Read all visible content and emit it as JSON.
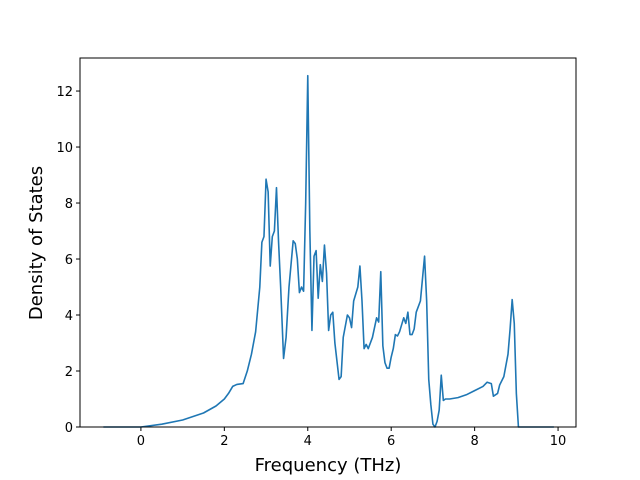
{
  "chart_data": {
    "type": "line",
    "x_label": "Frequency (THz)",
    "y_label": "Density of States",
    "x": [
      -0.9,
      0,
      0.5,
      1,
      1.5,
      1.8,
      2.0,
      2.1,
      2.2,
      2.3,
      2.45,
      2.55,
      2.65,
      2.75,
      2.85,
      2.9,
      2.95,
      3.0,
      3.05,
      3.1,
      3.15,
      3.2,
      3.25,
      3.3,
      3.35,
      3.42,
      3.48,
      3.55,
      3.65,
      3.7,
      3.75,
      3.8,
      3.85,
      3.9,
      3.95,
      4.0,
      4.05,
      4.1,
      4.15,
      4.2,
      4.25,
      4.3,
      4.35,
      4.4,
      4.45,
      4.5,
      4.55,
      4.6,
      4.65,
      4.75,
      4.8,
      4.85,
      4.95,
      5.0,
      5.05,
      5.1,
      5.2,
      5.25,
      5.3,
      5.35,
      5.4,
      5.45,
      5.55,
      5.65,
      5.7,
      5.75,
      5.8,
      5.85,
      5.9,
      5.95,
      6.0,
      6.05,
      6.1,
      6.15,
      6.2,
      6.3,
      6.35,
      6.4,
      6.45,
      6.5,
      6.55,
      6.6,
      6.7,
      6.8,
      6.85,
      6.9,
      6.95,
      7.0,
      7.05,
      7.1,
      7.15,
      7.2,
      7.25,
      7.3,
      7.4,
      7.6,
      7.8,
      8.0,
      8.2,
      8.3,
      8.4,
      8.45,
      8.55,
      8.6,
      8.7,
      8.8,
      8.85,
      8.9,
      8.95,
      9.0,
      9.05,
      9.9
    ],
    "series": [
      {
        "color": "#1f77b4",
        "values": [
          0,
          0,
          0.1,
          0.25,
          0.5,
          0.75,
          1.0,
          1.2,
          1.45,
          1.52,
          1.55,
          2.0,
          2.6,
          3.4,
          5.0,
          6.6,
          6.8,
          8.85,
          8.4,
          5.75,
          6.8,
          7.0,
          8.55,
          6.6,
          5.0,
          2.45,
          3.2,
          5.0,
          6.65,
          6.55,
          6.0,
          4.8,
          5.0,
          4.85,
          8.0,
          12.55,
          7.0,
          3.45,
          6.1,
          6.3,
          4.6,
          5.8,
          5.2,
          6.5,
          5.5,
          3.45,
          4.0,
          4.1,
          3.0,
          1.7,
          1.8,
          3.2,
          4.0,
          3.9,
          3.55,
          4.5,
          5.0,
          5.75,
          4.5,
          2.8,
          2.95,
          2.8,
          3.2,
          3.9,
          3.75,
          5.55,
          2.9,
          2.3,
          2.1,
          2.1,
          2.5,
          2.8,
          3.3,
          3.25,
          3.4,
          3.9,
          3.7,
          4.1,
          3.3,
          3.3,
          3.5,
          4.1,
          4.5,
          6.1,
          4.5,
          1.7,
          0.8,
          0.1,
          0,
          0.2,
          0.6,
          1.85,
          0.95,
          1.0,
          1.0,
          1.05,
          1.15,
          1.3,
          1.45,
          1.6,
          1.55,
          1.1,
          1.2,
          1.5,
          1.8,
          2.6,
          3.5,
          4.55,
          3.7,
          1.2,
          0,
          0
        ]
      }
    ],
    "xlim": [
      -1.46,
      10.43
    ],
    "xticks": [
      0,
      2,
      4,
      6,
      8,
      10
    ],
    "ylim": [
      0,
      13.18
    ],
    "yticks": [
      0,
      2,
      4,
      6,
      8,
      10,
      12
    ]
  }
}
